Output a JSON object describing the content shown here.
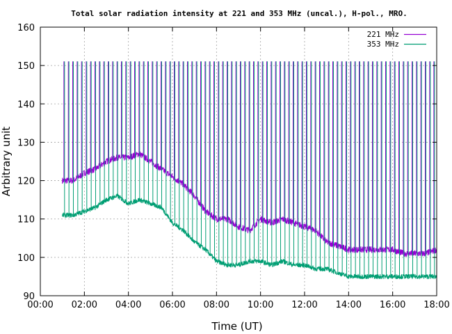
{
  "chart_data": {
    "type": "line",
    "title": "Total solar radiation intensity at 221 and 353 MHz (uncal.), H-pol., MRO.",
    "xlabel": "Time (UT)",
    "ylabel": "Arbitrary unit",
    "xlim": [
      0,
      18
    ],
    "ylim": [
      90,
      160
    ],
    "x_ticks": [
      "00:00",
      "02:00",
      "04:00",
      "06:00",
      "08:00",
      "10:00",
      "12:00",
      "14:00",
      "16:00",
      "18:00"
    ],
    "y_ticks": [
      "90",
      "100",
      "110",
      "120",
      "130",
      "140",
      "150",
      "160"
    ],
    "grid": true,
    "legend_position": "top-right",
    "spike_period_hours": 0.2,
    "series": [
      {
        "name": "221 MHz",
        "color": "#9400d3",
        "spike_top": 151,
        "envelope": [
          [
            1.0,
            120,
            135
          ],
          [
            1.5,
            120,
            135
          ],
          [
            2.0,
            122,
            135
          ],
          [
            2.5,
            123,
            136
          ],
          [
            3.0,
            125,
            137
          ],
          [
            3.5,
            126,
            137
          ],
          [
            4.0,
            126,
            138
          ],
          [
            4.5,
            127,
            137
          ],
          [
            5.0,
            125,
            136
          ],
          [
            5.5,
            123,
            135
          ],
          [
            6.0,
            121,
            134
          ],
          [
            6.5,
            119,
            133
          ],
          [
            7.0,
            116,
            132
          ],
          [
            7.5,
            112,
            131
          ],
          [
            8.0,
            110,
            130
          ],
          [
            8.5,
            110,
            129
          ],
          [
            9.0,
            108,
            129
          ],
          [
            9.5,
            107,
            128
          ],
          [
            10.0,
            110,
            128
          ],
          [
            10.5,
            109,
            127
          ],
          [
            11.0,
            110,
            127
          ],
          [
            11.5,
            109,
            127
          ],
          [
            12.0,
            108,
            126
          ],
          [
            12.5,
            107,
            126
          ],
          [
            13.0,
            104,
            126
          ],
          [
            13.5,
            103,
            126
          ],
          [
            14.0,
            102,
            125
          ],
          [
            14.5,
            102,
            125
          ],
          [
            15.0,
            102,
            125
          ],
          [
            15.5,
            102,
            125
          ],
          [
            16.0,
            102,
            124
          ],
          [
            16.5,
            101,
            124
          ],
          [
            17.0,
            101,
            124
          ],
          [
            17.5,
            101,
            124
          ],
          [
            18.0,
            102,
            124
          ]
        ]
      },
      {
        "name": "353 MHz",
        "color": "#009e73",
        "spike_top": 151,
        "envelope": [
          [
            1.0,
            111,
            133
          ],
          [
            1.5,
            111,
            133
          ],
          [
            2.0,
            112,
            133
          ],
          [
            2.5,
            113,
            133
          ],
          [
            3.0,
            115,
            133
          ],
          [
            3.5,
            116,
            132
          ],
          [
            4.0,
            114,
            132
          ],
          [
            4.5,
            115,
            131
          ],
          [
            5.0,
            114,
            130
          ],
          [
            5.5,
            113,
            129
          ],
          [
            6.0,
            109,
            128
          ],
          [
            6.5,
            107,
            127
          ],
          [
            7.0,
            104,
            127
          ],
          [
            7.5,
            102,
            127
          ],
          [
            8.0,
            99,
            126
          ],
          [
            8.5,
            98,
            126
          ],
          [
            9.0,
            98,
            126
          ],
          [
            9.5,
            99,
            125
          ],
          [
            10.0,
            99,
            125
          ],
          [
            10.5,
            98,
            125
          ],
          [
            11.0,
            99,
            125
          ],
          [
            11.5,
            98,
            125
          ],
          [
            12.0,
            98,
            125
          ],
          [
            12.5,
            97,
            124
          ],
          [
            13.0,
            97,
            124
          ],
          [
            13.5,
            96,
            124
          ],
          [
            14.0,
            95,
            123
          ],
          [
            14.5,
            95,
            123
          ],
          [
            15.0,
            95,
            123
          ],
          [
            15.5,
            95,
            123
          ],
          [
            16.0,
            95,
            123
          ],
          [
            16.5,
            95,
            123
          ],
          [
            17.0,
            95,
            123
          ],
          [
            17.5,
            95,
            123
          ],
          [
            18.0,
            95,
            123
          ]
        ]
      }
    ]
  }
}
